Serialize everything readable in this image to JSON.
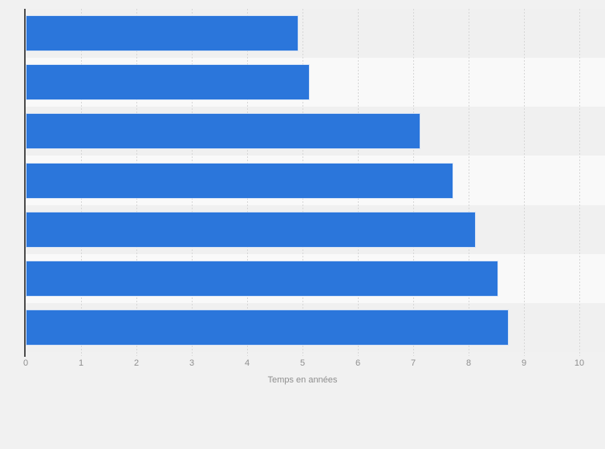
{
  "chart_data": {
    "type": "bar",
    "orientation": "horizontal",
    "title": "",
    "xlabel": "Temps en années",
    "ylabel": "",
    "xlim": [
      0,
      10
    ],
    "x_ticks": [
      0,
      1,
      2,
      3,
      4,
      5,
      6,
      7,
      8,
      9,
      10
    ],
    "grid": "vertical-dashed",
    "legend": "none",
    "categories": [
      "",
      "",
      "",
      "",
      "",
      "",
      ""
    ],
    "values": [
      4.9,
      5.1,
      7.1,
      7.7,
      8.1,
      8.5,
      8.7
    ],
    "bar_color": "#2b76db"
  }
}
